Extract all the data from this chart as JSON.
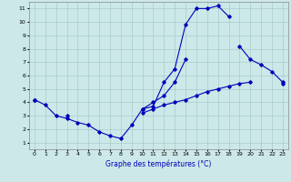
{
  "xlabel": "Graphe des températures (°C)",
  "background_color": "#cce8e8",
  "grid_color": "#aacccc",
  "line_color": "#0000bb",
  "xlim": [
    -0.5,
    23.5
  ],
  "ylim": [
    0.5,
    11.5
  ],
  "xticks": [
    0,
    1,
    2,
    3,
    4,
    5,
    6,
    7,
    8,
    9,
    10,
    11,
    12,
    13,
    14,
    15,
    16,
    17,
    18,
    19,
    20,
    21,
    22,
    23
  ],
  "yticks": [
    1,
    2,
    3,
    4,
    5,
    6,
    7,
    8,
    9,
    10,
    11
  ],
  "line1_y": [
    4.2,
    3.8,
    3.0,
    2.8,
    2.5,
    2.3,
    1.8,
    1.5,
    1.3,
    2.3,
    3.5,
    3.7,
    5.5,
    6.5,
    9.8,
    11.0,
    11.0,
    11.2,
    10.4,
    null,
    null,
    null,
    null,
    null
  ],
  "line2_y": [
    4.2,
    null,
    null,
    3.0,
    null,
    null,
    null,
    null,
    null,
    null,
    3.5,
    4.0,
    4.5,
    5.5,
    7.2,
    null,
    null,
    null,
    null,
    8.2,
    7.2,
    6.8,
    6.3,
    5.5
  ],
  "line3_y": [
    null,
    null,
    null,
    null,
    null,
    null,
    null,
    null,
    null,
    null,
    3.2,
    3.5,
    3.8,
    4.0,
    4.2,
    4.5,
    4.8,
    5.0,
    5.2,
    5.4,
    5.5,
    null,
    null,
    5.4
  ]
}
